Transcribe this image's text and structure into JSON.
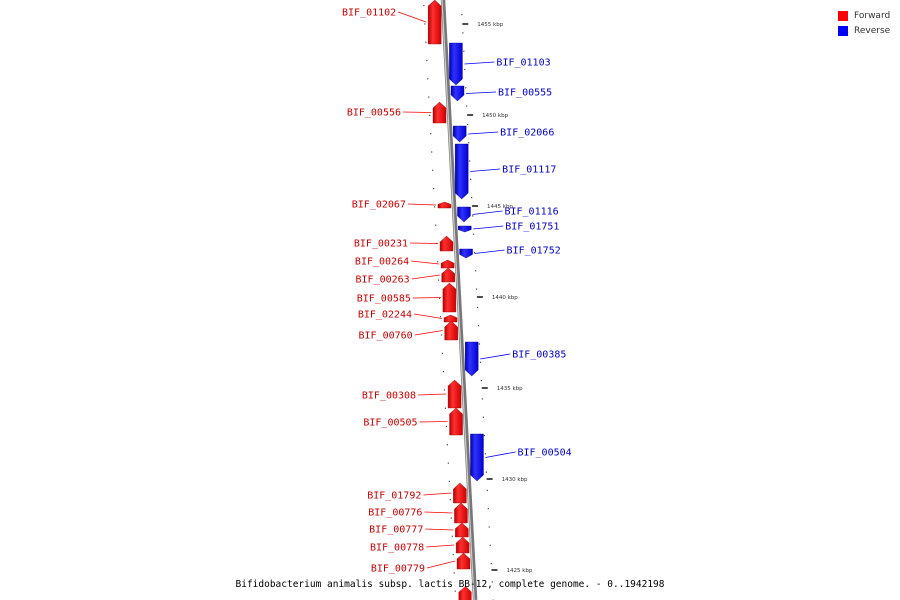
{
  "legend": {
    "forward": {
      "label": "Forward",
      "color": "#ff0000"
    },
    "reverse": {
      "label": "Reverse",
      "color": "#0000ff"
    }
  },
  "caption": "Bifidobacterium animalis subsp. lactis BB-12, complete genome. - 0..1942198",
  "scale_ticks": [
    "1455 kbp",
    "1450 kbp",
    "1445 kbp",
    "1440 kbp",
    "1435 kbp",
    "1430 kbp",
    "1425 kbp"
  ],
  "genes": [
    {
      "id": "BIF_01102",
      "strand": "forward"
    },
    {
      "id": "BIF_01103",
      "strand": "reverse"
    },
    {
      "id": "BIF_00555",
      "strand": "reverse"
    },
    {
      "id": "BIF_00556",
      "strand": "forward"
    },
    {
      "id": "BIF_02066",
      "strand": "reverse"
    },
    {
      "id": "BIF_01117",
      "strand": "reverse"
    },
    {
      "id": "BIF_02067",
      "strand": "forward"
    },
    {
      "id": "BIF_01116",
      "strand": "reverse"
    },
    {
      "id": "BIF_01751",
      "strand": "reverse"
    },
    {
      "id": "BIF_00231",
      "strand": "forward"
    },
    {
      "id": "BIF_01752",
      "strand": "reverse"
    },
    {
      "id": "BIF_00264",
      "strand": "forward"
    },
    {
      "id": "BIF_00263",
      "strand": "forward"
    },
    {
      "id": "BIF_00585",
      "strand": "forward"
    },
    {
      "id": "BIF_02244",
      "strand": "forward"
    },
    {
      "id": "BIF_00760",
      "strand": "forward"
    },
    {
      "id": "BIF_00385",
      "strand": "reverse"
    },
    {
      "id": "BIF_00308",
      "strand": "forward"
    },
    {
      "id": "BIF_00505",
      "strand": "forward"
    },
    {
      "id": "BIF_00504",
      "strand": "reverse"
    },
    {
      "id": "BIF_01792",
      "strand": "forward"
    },
    {
      "id": "BIF_00776",
      "strand": "forward"
    },
    {
      "id": "BIF_00777",
      "strand": "forward"
    },
    {
      "id": "BIF_00778",
      "strand": "forward"
    },
    {
      "id": "BIF_00779",
      "strand": "forward"
    }
  ]
}
